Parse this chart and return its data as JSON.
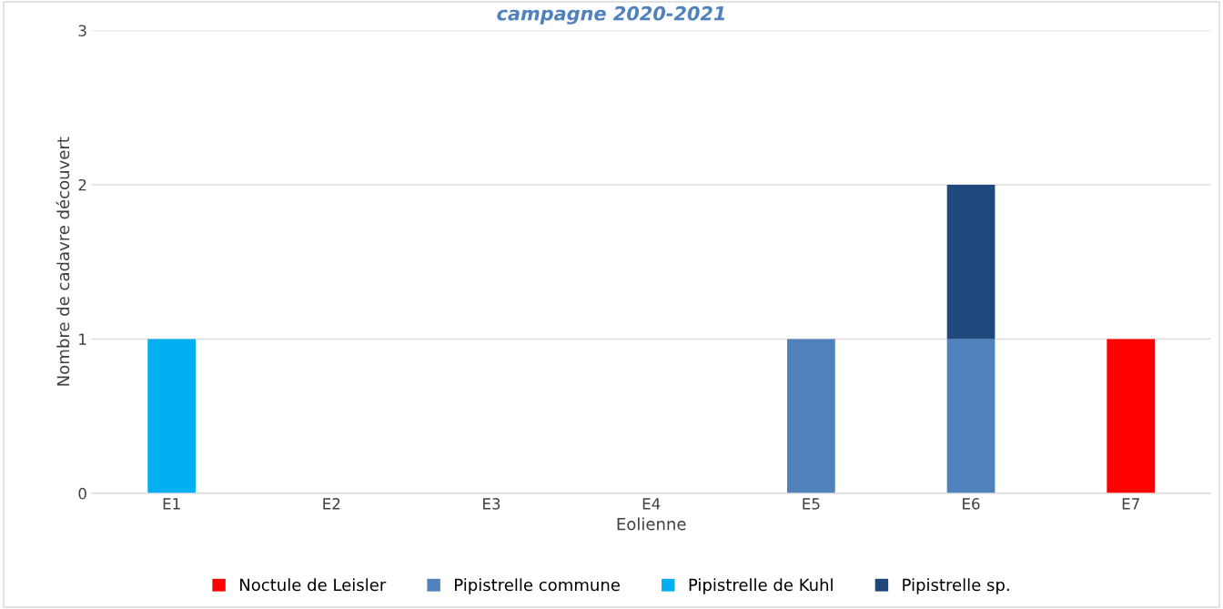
{
  "chart_data": {
    "type": "bar",
    "title": "campagne 2020-2021",
    "xlabel": "Eolienne",
    "ylabel": "Nombre de cadavre découvert",
    "categories": [
      "E1",
      "E2",
      "E3",
      "E4",
      "E5",
      "E6",
      "E7"
    ],
    "stacked": true,
    "series": [
      {
        "name": "Noctule de Leisler",
        "color": "#ff0000",
        "values": [
          0,
          0,
          0,
          0,
          0,
          0,
          1
        ]
      },
      {
        "name": "Pipistrelle commune",
        "color": "#4f81bd",
        "values": [
          0,
          0,
          0,
          0,
          1,
          1,
          0
        ]
      },
      {
        "name": "Pipistrelle de Kuhl",
        "color": "#00b0f0",
        "values": [
          1,
          0,
          0,
          0,
          0,
          0,
          0
        ]
      },
      {
        "name": "Pipistrelle sp.",
        "color": "#1f497d",
        "values": [
          0,
          0,
          0,
          0,
          0,
          1,
          0
        ]
      }
    ],
    "ylim": [
      0,
      3
    ],
    "yticks": [
      0,
      1,
      2,
      3
    ],
    "grid": "y",
    "legend": "bottom"
  }
}
